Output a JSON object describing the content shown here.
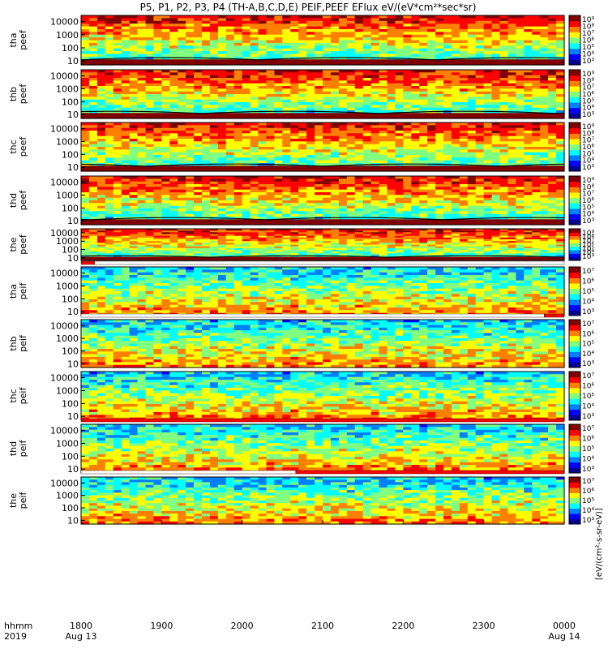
{
  "title": "P5, P1, P2, P3, P4 (TH-A,B,C,D,E) PEIF,PEEF EFlux eV/(eV*cm²*sec*sr)",
  "x_axis": {
    "row_label_1": "hhmm",
    "row_label_2": "2019",
    "ticks": [
      "1800",
      "1900",
      "2000",
      "2100",
      "2200",
      "2300",
      "0000"
    ],
    "date_labels": [
      "Aug 13",
      "Aug 14"
    ]
  },
  "colorbar_units": "[eV/(cm²-s-sr-eV)]",
  "colors": {
    "jet": [
      "#00008f",
      "#0000ff",
      "#0080ff",
      "#00ffff",
      "#80ff80",
      "#ffff00",
      "#ff8000",
      "#ff0000",
      "#800000"
    ],
    "flag_red": "#ff0000",
    "flag_white": "#ffffff"
  },
  "chart_data": {
    "type": "heatmap",
    "x_range": [
      "2019-08-13 18:00",
      "2019-08-14 00:00"
    ],
    "x_ticks": [
      "1800",
      "1900",
      "2000",
      "2100",
      "2200",
      "2300",
      "0000"
    ],
    "y_scale": "log",
    "y_range": [
      5,
      30000
    ],
    "y_ticks": [
      "10",
      "100",
      "1000",
      "10000"
    ],
    "panels": [
      {
        "id": "tha_peef",
        "label_1": "tha",
        "label_2": "peef",
        "species": "electron",
        "cbar_ticks": [
          "10⁹",
          "10⁸",
          "10⁷",
          "10⁶",
          "10⁵",
          "10⁴",
          "10³"
        ],
        "potential_line": true
      },
      {
        "id": "thb_peef",
        "label_1": "thb",
        "label_2": "peef",
        "species": "electron",
        "cbar_ticks": [
          "10⁹",
          "10⁸",
          "10⁷",
          "10⁶",
          "10⁵",
          "10⁴",
          "10³"
        ],
        "potential_line": true
      },
      {
        "id": "thc_peef",
        "label_1": "thc",
        "label_2": "peef",
        "species": "electron",
        "cbar_ticks": [
          "10⁹",
          "10⁸",
          "10⁷",
          "10⁶",
          "10⁵",
          "10⁴",
          "10³"
        ],
        "potential_line": true
      },
      {
        "id": "thd_peef",
        "label_1": "thd",
        "label_2": "peef",
        "species": "electron",
        "cbar_ticks": [
          "10⁹",
          "10⁸",
          "10⁷",
          "10⁶",
          "10⁵",
          "10⁴",
          "10³"
        ],
        "potential_line": true
      },
      {
        "id": "the_peef",
        "label_1": "the",
        "label_2": "peef",
        "species": "electron",
        "cbar_ticks": [
          "10⁹",
          "10⁸",
          "10⁷",
          "10⁶",
          "10⁵",
          "10⁴",
          "10³"
        ],
        "potential_line": true
      },
      {
        "id": "tha_peif",
        "label_1": "tha",
        "label_2": "peif",
        "species": "ion",
        "cbar_ticks": [
          "10⁷",
          "10⁶",
          "10⁵",
          "10⁴",
          "10³"
        ],
        "potential_line": false
      },
      {
        "id": "thb_peif",
        "label_1": "thb",
        "label_2": "peif",
        "species": "ion",
        "cbar_ticks": [
          "10⁷",
          "10⁶",
          "10⁵",
          "10⁴",
          "10³"
        ],
        "potential_line": false
      },
      {
        "id": "thc_peif",
        "label_1": "thc",
        "label_2": "peif",
        "species": "ion",
        "cbar_ticks": [
          "10⁷",
          "10⁶",
          "10⁵",
          "10⁴",
          "10³"
        ],
        "potential_line": false
      },
      {
        "id": "thd_peif",
        "label_1": "thd",
        "label_2": "peif",
        "species": "ion",
        "cbar_ticks": [
          "10⁷",
          "10⁶",
          "10⁵",
          "10⁴",
          "10³"
        ],
        "potential_line": false
      },
      {
        "id": "the_peif",
        "label_1": "the",
        "label_2": "peif",
        "species": "ion",
        "cbar_ticks": [
          "10⁷",
          "10⁶",
          "10⁵",
          "10⁴",
          "10³"
        ],
        "potential_line": false
      }
    ],
    "flag_bars": [
      {
        "after_panel": 4,
        "segments": [
          [
            "18:00",
            "18:10",
            "red"
          ],
          [
            "18:10",
            "24:00",
            "white"
          ]
        ]
      },
      {
        "after_panel": 5,
        "segments": [
          [
            "18:00",
            "23:45",
            "white"
          ],
          [
            "23:45",
            "24:00",
            "red"
          ]
        ]
      },
      {
        "after_panel": 7,
        "segments": [
          [
            "18:00",
            "24:00",
            "red"
          ]
        ]
      },
      {
        "after_panel": 8,
        "segments": [
          [
            "18:00",
            "20:40",
            "white"
          ],
          [
            "20:40",
            "24:00",
            "red"
          ]
        ]
      }
    ]
  }
}
